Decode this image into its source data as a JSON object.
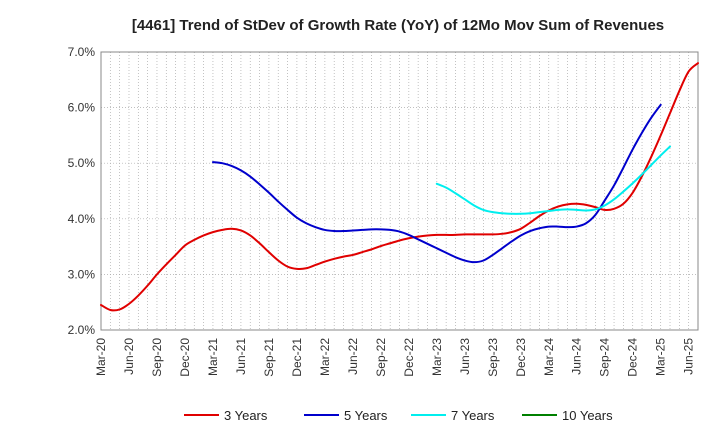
{
  "chart_data": {
    "type": "line",
    "title": "[4461]  Trend of StDev of Growth Rate (YoY) of 12Mo Mov Sum of Revenues",
    "xlabel": "",
    "ylabel": "",
    "ylim": [
      2.0,
      7.0
    ],
    "yticks": [
      "2.0%",
      "3.0%",
      "4.0%",
      "5.0%",
      "6.0%",
      "7.0%"
    ],
    "ytick_values": [
      2.0,
      3.0,
      4.0,
      5.0,
      6.0,
      7.0
    ],
    "xticks": [
      "Mar-20",
      "Jun-20",
      "Sep-20",
      "Dec-20",
      "Mar-21",
      "Jun-21",
      "Sep-21",
      "Dec-21",
      "Mar-22",
      "Jun-22",
      "Sep-22",
      "Dec-22",
      "Mar-23",
      "Jun-23",
      "Sep-23",
      "Dec-23",
      "Mar-24",
      "Jun-24",
      "Sep-24",
      "Dec-24",
      "Mar-25",
      "Jun-25"
    ],
    "x_months": 64,
    "grid": true,
    "legend_position": "bottom",
    "series": [
      {
        "name": "3 Years",
        "color": "#e00000",
        "start_month": 0,
        "values": [
          2.45,
          2.36,
          2.37,
          2.47,
          2.62,
          2.8,
          3.0,
          3.18,
          3.35,
          3.52,
          3.62,
          3.7,
          3.76,
          3.8,
          3.82,
          3.79,
          3.7,
          3.56,
          3.4,
          3.25,
          3.14,
          3.1,
          3.11,
          3.17,
          3.23,
          3.28,
          3.32,
          3.35,
          3.4,
          3.45,
          3.51,
          3.56,
          3.61,
          3.65,
          3.68,
          3.7,
          3.71,
          3.71,
          3.71,
          3.72,
          3.72,
          3.72,
          3.72,
          3.73,
          3.76,
          3.82,
          3.93,
          4.05,
          4.15,
          4.22,
          4.26,
          4.27,
          4.25,
          4.21,
          4.16,
          4.18,
          4.27,
          4.47,
          4.77,
          5.12,
          5.5,
          5.9,
          6.3,
          6.65,
          6.8
        ]
      },
      {
        "name": "5 Years",
        "color": "#0000cc",
        "start_month": 12,
        "values": [
          5.02,
          5.0,
          4.95,
          4.87,
          4.76,
          4.62,
          4.47,
          4.31,
          4.16,
          4.02,
          3.92,
          3.85,
          3.8,
          3.78,
          3.78,
          3.79,
          3.8,
          3.81,
          3.81,
          3.8,
          3.77,
          3.71,
          3.63,
          3.55,
          3.47,
          3.39,
          3.31,
          3.25,
          3.22,
          3.25,
          3.35,
          3.47,
          3.59,
          3.7,
          3.78,
          3.83,
          3.86,
          3.86,
          3.85,
          3.86,
          3.92,
          4.07,
          4.33,
          4.6,
          4.92,
          5.25,
          5.55,
          5.82,
          6.05
        ]
      },
      {
        "name": "7 Years",
        "color": "#00eeee",
        "start_month": 36,
        "values": [
          4.63,
          4.56,
          4.46,
          4.35,
          4.24,
          4.16,
          4.12,
          4.1,
          4.09,
          4.09,
          4.1,
          4.12,
          4.14,
          4.16,
          4.17,
          4.16,
          4.15,
          4.17,
          4.24,
          4.35,
          4.49,
          4.64,
          4.8,
          4.97,
          5.14,
          5.3
        ]
      },
      {
        "name": "10 Years",
        "color": "#008000",
        "start_month": 0,
        "values": []
      }
    ]
  }
}
